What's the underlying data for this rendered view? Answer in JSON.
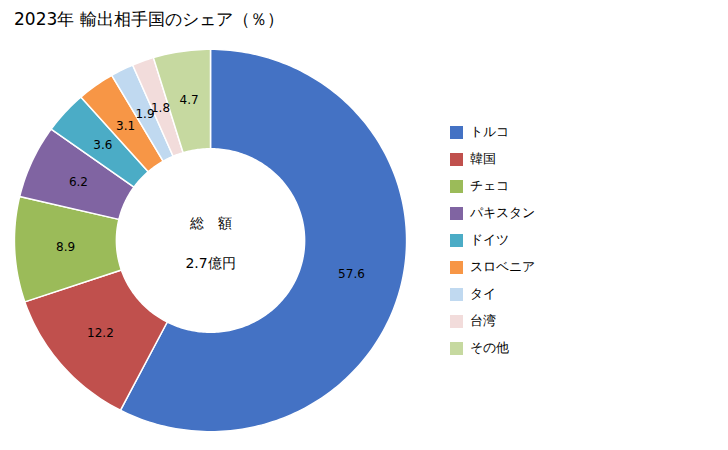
{
  "chart_data": {
    "type": "pie",
    "title": "2023年 輸出相手国のシェア（％）",
    "annotations": [
      "総　額",
      "2.7億円"
    ],
    "categories": [
      "トルコ",
      "韓国",
      "チェコ",
      "パキスタン",
      "ドイツ",
      "スロベニア",
      "タイ",
      "台湾",
      "その他"
    ],
    "values": [
      57.6,
      12.2,
      8.9,
      6.2,
      3.6,
      3.1,
      1.9,
      1.8,
      4.7
    ],
    "colors": [
      "#4472C4",
      "#C0504D",
      "#9BBB59",
      "#8064A2",
      "#4BACC6",
      "#F79646",
      "#C0D9F0",
      "#F2DCDB",
      "#C6D9A0"
    ],
    "data_labels": true,
    "legend": "right"
  }
}
